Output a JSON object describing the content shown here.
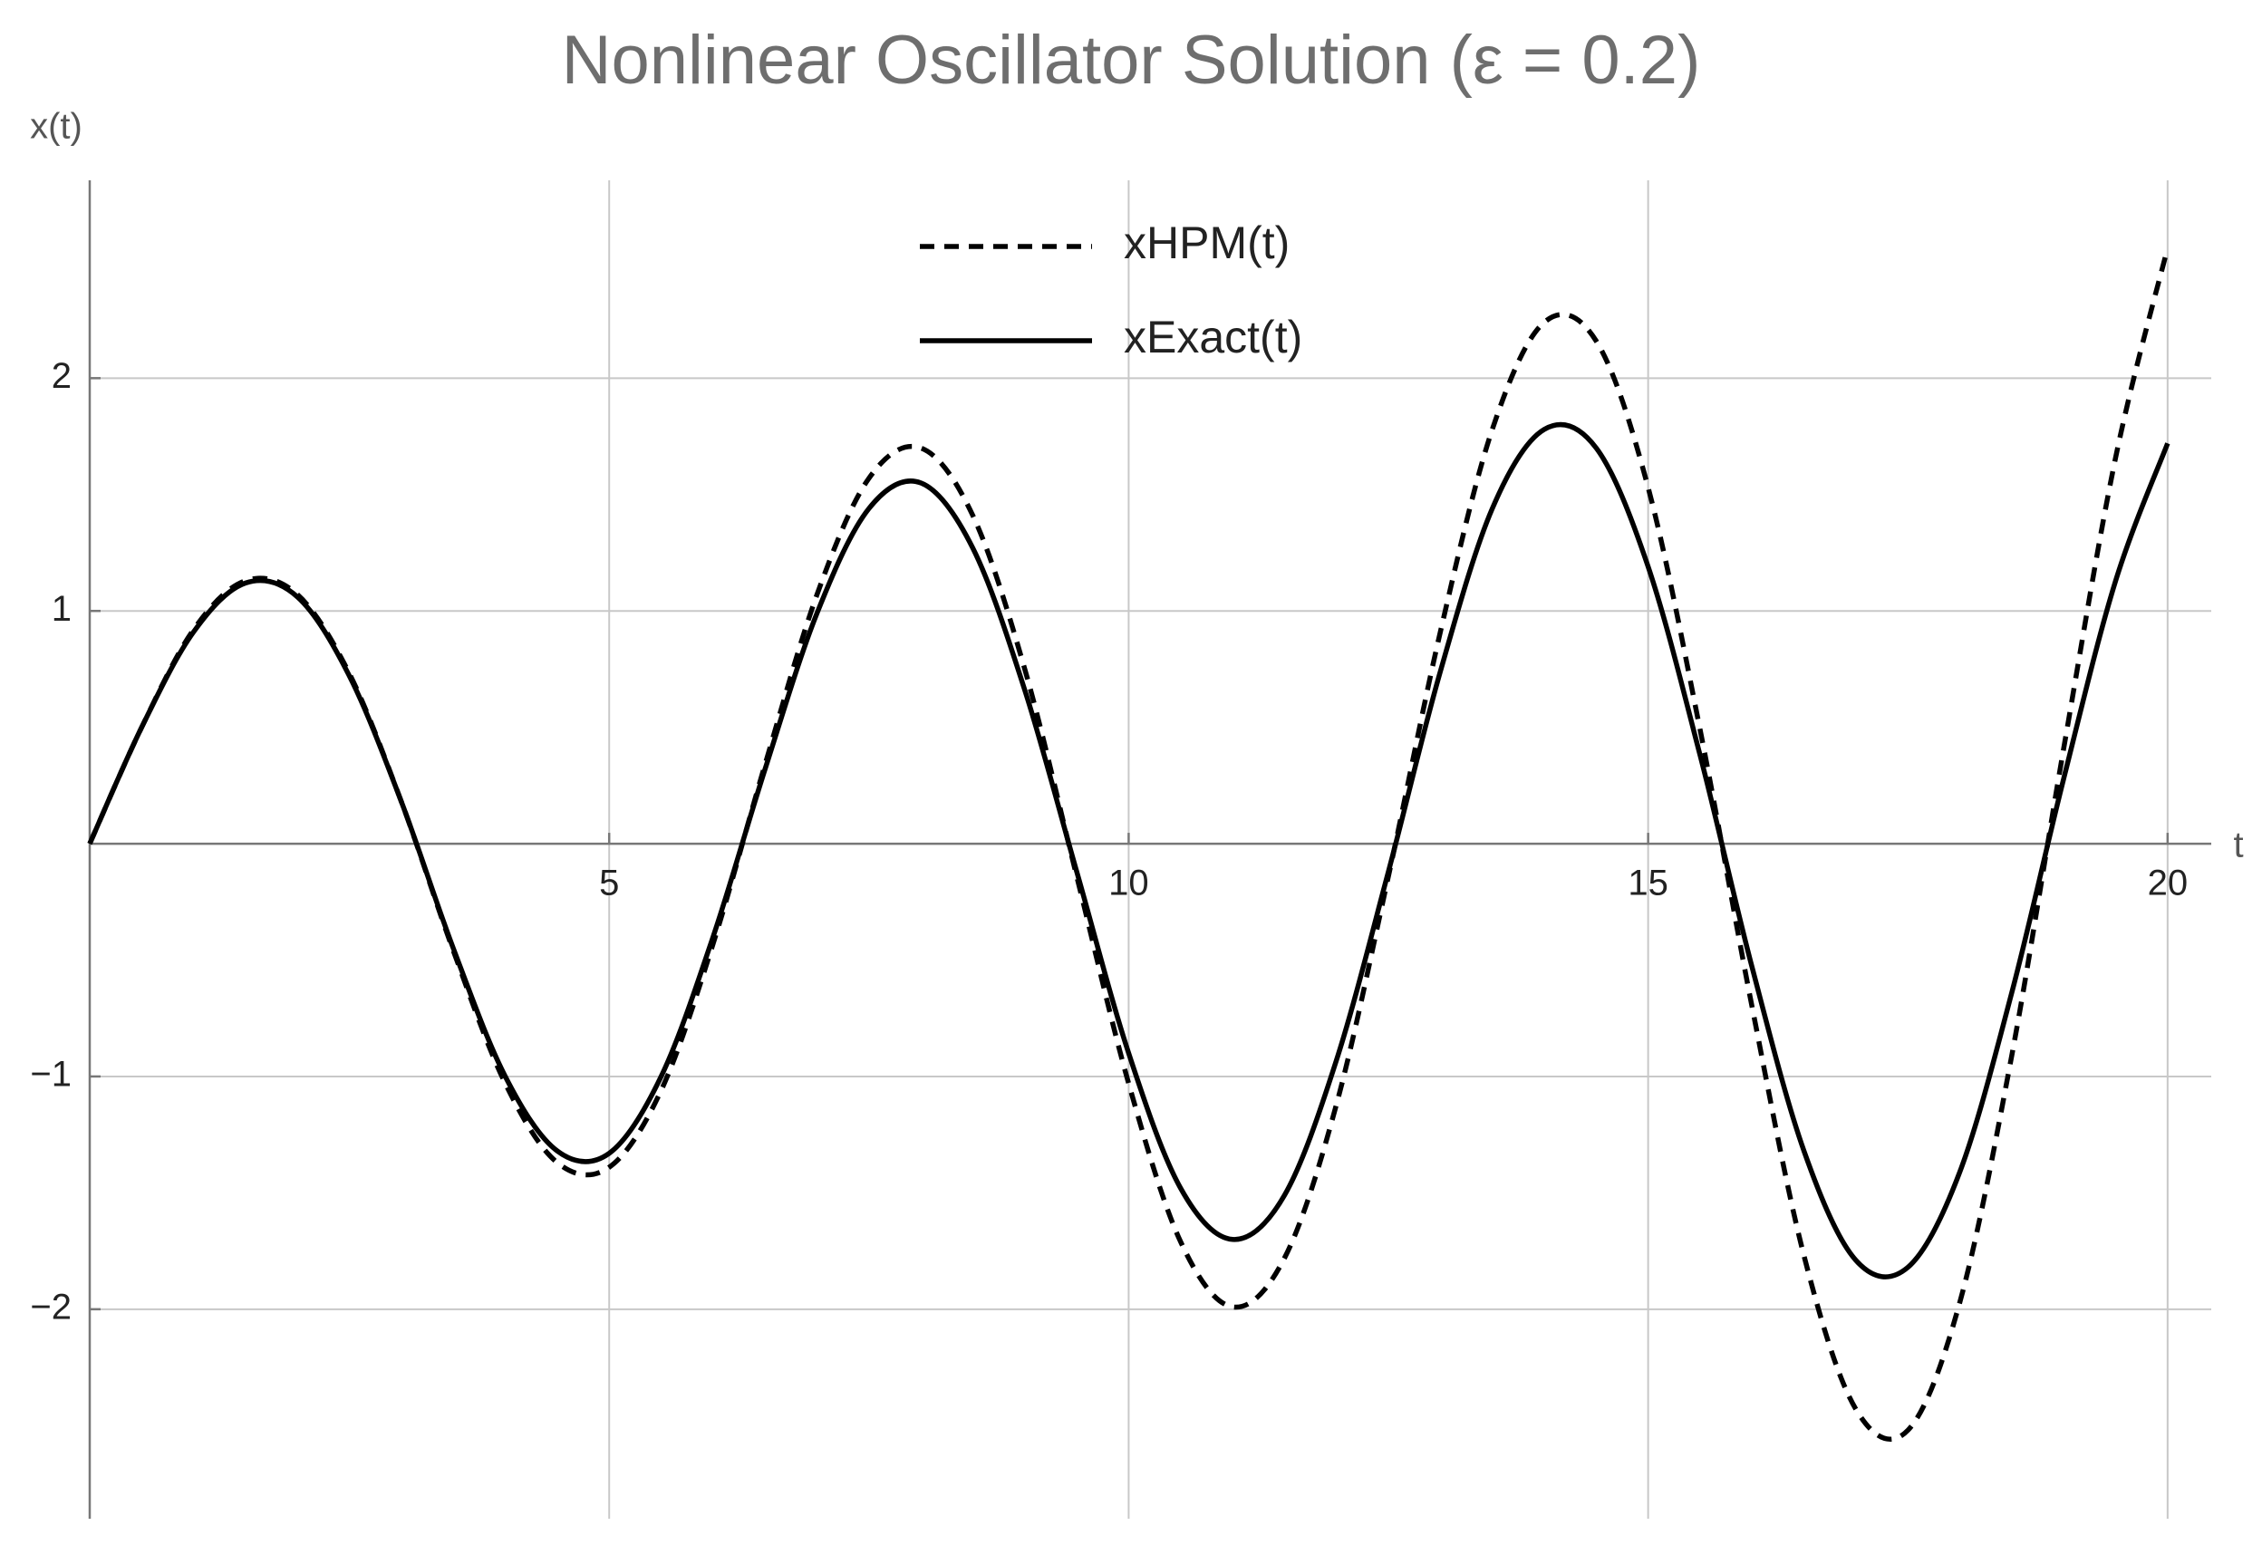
{
  "chart_data": {
    "type": "line",
    "title": "Nonlinear Oscillator Solution (ε = 0.2)",
    "x_label": "t",
    "y_label": "x(t)",
    "x": [
      0,
      0.5,
      1,
      1.5,
      2,
      2.5,
      3,
      3.5,
      4,
      4.5,
      5,
      5.5,
      6,
      6.5,
      7,
      7.5,
      8,
      8.5,
      9,
      9.5,
      10,
      10.5,
      11,
      11.5,
      12,
      12.5,
      13,
      13.5,
      14,
      14.5,
      15,
      15.5,
      16,
      16.5,
      17,
      17.5,
      18,
      18.5,
      19,
      19.5,
      20
    ],
    "series": [
      {
        "name": "xHPM(t)",
        "color": "#000000",
        "style": "dashed",
        "values": [
          0,
          0.5,
          0.92,
          1.13,
          1.07,
          0.73,
          0.18,
          -0.46,
          -1.03,
          -1.37,
          -1.39,
          -1.06,
          -0.43,
          0.34,
          1.07,
          1.57,
          1.7,
          1.41,
          0.75,
          -0.14,
          -1.03,
          -1.71,
          -1.99,
          -1.78,
          -1.12,
          -0.14,
          0.91,
          1.78,
          2.24,
          2.16,
          1.53,
          0.49,
          -0.7,
          -1.77,
          -2.43,
          -2.52,
          -1.97,
          -0.91,
          0.41,
          1.66,
          2.56
        ]
      },
      {
        "name": "xExact(t)",
        "color": "#000000",
        "style": "solid",
        "values": [
          0,
          0.5,
          0.91,
          1.12,
          1.06,
          0.72,
          0.18,
          -0.45,
          -1.0,
          -1.32,
          -1.33,
          -1.0,
          -0.4,
          0.32,
          0.99,
          1.44,
          1.55,
          1.27,
          0.66,
          -0.12,
          -0.9,
          -1.48,
          -1.7,
          -1.51,
          -0.93,
          -0.12,
          0.74,
          1.44,
          1.78,
          1.7,
          1.19,
          0.38,
          -0.53,
          -1.32,
          -1.79,
          -1.82,
          -1.41,
          -0.64,
          0.28,
          1.13,
          1.72
        ]
      }
    ],
    "xlim": [
      0,
      20.42
    ],
    "ylim": [
      -2.9,
      2.85
    ],
    "xticks": [
      5,
      10,
      15,
      20
    ],
    "yticks": [
      {
        "value": -2,
        "label": "−2"
      },
      {
        "value": -1,
        "label": "−1"
      },
      1,
      2
    ],
    "grid": true,
    "legend": "top-center"
  }
}
